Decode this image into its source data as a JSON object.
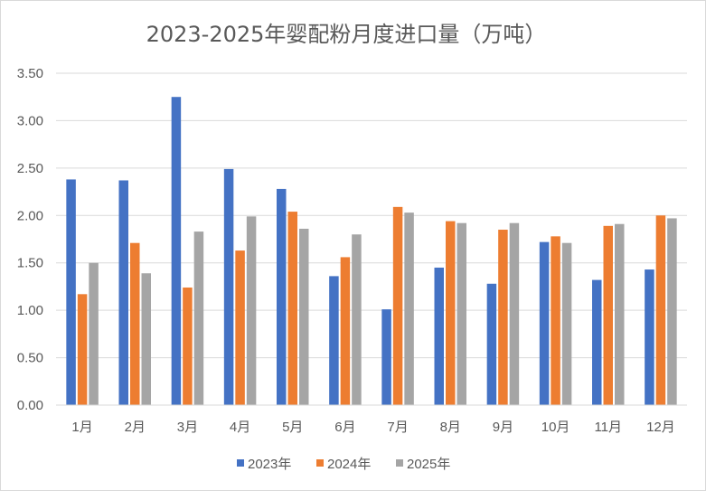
{
  "chart_data": {
    "type": "bar",
    "title": "2023-2025年婴配粉月度进口量（万吨）",
    "categories": [
      "1月",
      "2月",
      "3月",
      "4月",
      "5月",
      "6月",
      "7月",
      "8月",
      "9月",
      "10月",
      "11月",
      "12月"
    ],
    "series": [
      {
        "name": "2023年",
        "color": "#4472c4",
        "values": [
          2.38,
          2.37,
          3.25,
          2.49,
          2.28,
          1.36,
          1.01,
          1.45,
          1.28,
          1.72,
          1.32,
          1.43
        ]
      },
      {
        "name": "2024年",
        "color": "#ed7d31",
        "values": [
          1.17,
          1.71,
          1.24,
          1.63,
          2.04,
          1.56,
          2.09,
          1.94,
          1.85,
          1.78,
          1.89,
          2.0
        ]
      },
      {
        "name": "2025年",
        "color": "#a5a5a5",
        "values": [
          1.5,
          1.39,
          1.83,
          1.99,
          1.86,
          1.8,
          2.03,
          1.92,
          1.92,
          1.71,
          1.91,
          1.97
        ]
      }
    ],
    "y_ticks": [
      "0.00",
      "0.50",
      "1.00",
      "1.50",
      "2.00",
      "2.50",
      "3.00",
      "3.50"
    ],
    "ylim": [
      0,
      3.5
    ],
    "grid": true,
    "legend_position": "bottom"
  }
}
